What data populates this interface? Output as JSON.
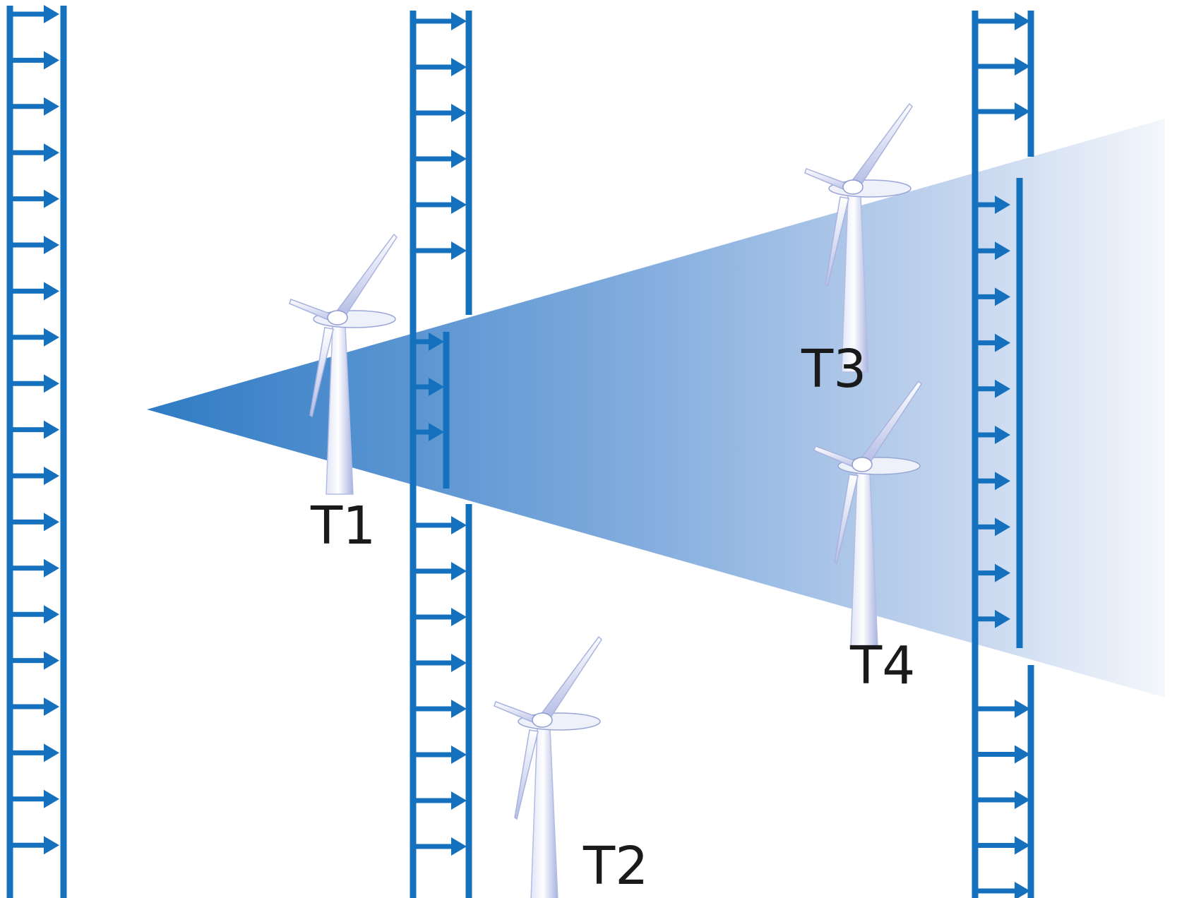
{
  "colors": {
    "flow_blue": "#1570be",
    "wake_blue": "#3a82c8",
    "turbine_body": "#f2f4fb",
    "turbine_shade": "#9aa6d8",
    "label_text": "#1a1a1a"
  },
  "icons": {
    "turbine": "wind-turbine-icon",
    "arrow": "arrow-right-icon"
  },
  "turbines": [
    {
      "id": "t1",
      "label": "T1"
    },
    {
      "id": "t2",
      "label": "T2"
    },
    {
      "id": "t3",
      "label": "T3"
    },
    {
      "id": "t4",
      "label": "T4"
    }
  ]
}
